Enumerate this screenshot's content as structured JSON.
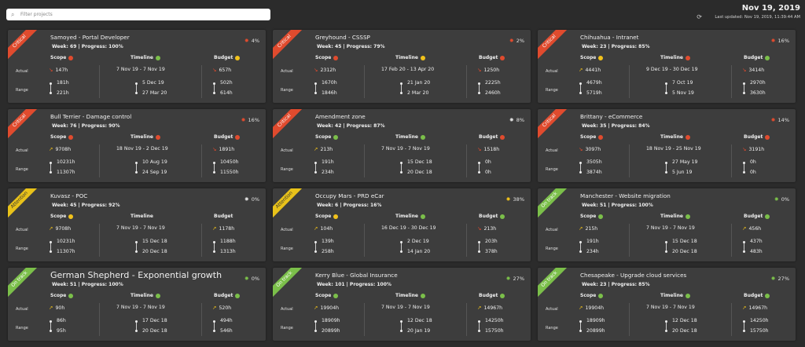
{
  "header": {
    "search_placeholder": "Filter projects",
    "date": "Nov 19, 2019",
    "last_updated": "Last updated: Nov 19, 2019, 11:39:44 AM"
  },
  "labels": {
    "scope": "Scope",
    "timeline": "Timeline",
    "budget": "Budget",
    "actual": "Actual",
    "range": "Range"
  },
  "colors": {
    "red": "#e04b2e",
    "yellow": "#f2c21b",
    "green": "#7bbf4a",
    "critical": "#e04b2e",
    "attention": "#e8c21a",
    "ontrack": "#7bbf4a"
  },
  "cards": [
    {
      "status": "Critical",
      "title": "Samoyed - Portal Developer",
      "week": "Week: 69 | Progress: 100%",
      "bugs": "4%",
      "bug_color": "red",
      "scope": {
        "dot": "red",
        "actual": "147h",
        "trend": "down",
        "r1": "181h",
        "r2": "221h"
      },
      "timeline": {
        "dot": "green",
        "actual": "7 Nov 19 - 7 Nov 19",
        "r1": "5 Dec 19",
        "r2": "27 Mar 20"
      },
      "budget": {
        "dot": "yellow",
        "actual": "657h",
        "trend": "down",
        "r1": "502h",
        "r2": "614h"
      }
    },
    {
      "status": "Critical",
      "title": "Greyhound - CSSSP",
      "week": "Week: 45 | Progress: 79%",
      "bugs": "2%",
      "bug_color": "red",
      "scope": {
        "dot": "red",
        "actual": "2312h",
        "trend": "down",
        "r1": "1670h",
        "r2": "1846h"
      },
      "timeline": {
        "dot": "yellow",
        "actual": "17 Feb 20 - 13 Apr 20",
        "r1": "21 Jan 20",
        "r2": "2 Mar 20"
      },
      "budget": {
        "dot": "red",
        "actual": "1250h",
        "trend": "down",
        "r1": "2225h",
        "r2": "2460h"
      }
    },
    {
      "status": "Critical",
      "title": "Chihuahua - Intranet",
      "week": "Week: 23 | Progress: 85%",
      "bugs": "16%",
      "bug_color": "red",
      "scope": {
        "dot": "yellow",
        "actual": "4441h",
        "trend": "up",
        "r1": "4679h",
        "r2": "5719h"
      },
      "timeline": {
        "dot": "red",
        "actual": "9 Dec 19 - 30 Dec 19",
        "r1": "7 Oct 19",
        "r2": "5 Nov 19"
      },
      "budget": {
        "dot": "green",
        "actual": "3414h",
        "trend": "down",
        "r1": "2970h",
        "r2": "3630h"
      }
    },
    {
      "status": "Critical",
      "title": "Bull Terrier - Damage control",
      "week": "Week: 76 | Progress: 90%",
      "bugs": "16%",
      "bug_color": "red",
      "scope": {
        "dot": "red",
        "actual": "9708h",
        "trend": "up",
        "r1": "10231h",
        "r2": "11307h"
      },
      "timeline": {
        "dot": "red",
        "actual": "18 Nov 19 - 2 Dec 19",
        "r1": "10 Aug 19",
        "r2": "24 Sep 19"
      },
      "budget": {
        "dot": "red",
        "actual": "1891h",
        "trend": "down",
        "r1": "10450h",
        "r2": "11550h"
      }
    },
    {
      "status": "Critical",
      "title": "Amendment zone",
      "week": "Week: 42 | Progress: 87%",
      "bugs": "8%",
      "bug_color": "white",
      "scope": {
        "dot": "green",
        "actual": "213h",
        "trend": "up",
        "r1": "191h",
        "r2": "234h"
      },
      "timeline": {
        "dot": "green",
        "actual": "7 Nov 19 - 7 Nov 19",
        "r1": "15 Dec 18",
        "r2": "20 Dec 18"
      },
      "budget": {
        "dot": "red",
        "actual": "1518h",
        "trend": "down",
        "r1": "0h",
        "r2": "0h"
      }
    },
    {
      "status": "Critical",
      "title": "Brittany - eCommerce",
      "week": "Week: 35 | Progress: 84%",
      "bugs": "14%",
      "bug_color": "red",
      "scope": {
        "dot": "red",
        "actual": "3097h",
        "trend": "down",
        "r1": "3505h",
        "r2": "3874h"
      },
      "timeline": {
        "dot": "red",
        "actual": "18 Nov 19 - 25 Nov 19",
        "r1": "27 May 19",
        "r2": "5 Jun 19"
      },
      "budget": {
        "dot": "red",
        "actual": "3191h",
        "trend": "down",
        "r1": "0h",
        "r2": "0h"
      }
    },
    {
      "status": "Attention",
      "title": "Kuvasz - POC",
      "week": "Week: 45 | Progress: 92%",
      "bugs": "0%",
      "bug_color": "white",
      "scope": {
        "dot": "yellow",
        "actual": "9708h",
        "trend": "up",
        "r1": "10231h",
        "r2": "11307h"
      },
      "timeline": {
        "dot": "",
        "actual": "7 Nov 19 - 7 Nov 19",
        "r1": "15 Dec 18",
        "r2": "20 Dec 18"
      },
      "budget": {
        "dot": "",
        "actual": "1178h",
        "trend": "up",
        "r1": "1188h",
        "r2": "1313h"
      }
    },
    {
      "status": "Attention",
      "title": "Occupy Mars - PRD eCar",
      "week": "Week: 6 | Progress: 16%",
      "bugs": "38%",
      "bug_color": "yellow",
      "scope": {
        "dot": "yellow",
        "actual": "104h",
        "trend": "up",
        "r1": "139h",
        "r2": "258h"
      },
      "timeline": {
        "dot": "green",
        "actual": "16 Dec 19 - 30 Dec 19",
        "r1": "2 Dec 19",
        "r2": "14 Jan 20"
      },
      "budget": {
        "dot": "green",
        "actual": "213h",
        "trend": "down",
        "r1": "203h",
        "r2": "378h"
      }
    },
    {
      "status": "On track",
      "title": "Manchester - Website migration",
      "week": "Week: 51 | Progress: 100%",
      "bugs": "0%",
      "bug_color": "green",
      "scope": {
        "dot": "green",
        "actual": "215h",
        "trend": "up",
        "r1": "191h",
        "r2": "234h"
      },
      "timeline": {
        "dot": "green",
        "actual": "7 Nov 19 - 7 Nov 19",
        "r1": "15 Dec 18",
        "r2": "20 Dec 18"
      },
      "budget": {
        "dot": "green",
        "actual": "456h",
        "trend": "up",
        "r1": "437h",
        "r2": "483h"
      }
    },
    {
      "status": "On track",
      "title": "German Shepherd - Exponential growth",
      "week": "Week: 51 | Progress: 100%",
      "bugs": "0%",
      "bug_color": "green",
      "big": true,
      "scope": {
        "dot": "green",
        "actual": "90h",
        "trend": "up",
        "r1": "86h",
        "r2": "95h"
      },
      "timeline": {
        "dot": "green",
        "actual": "7 Nov 19 - 7 Nov 19",
        "r1": "17 Dec 18",
        "r2": "20 Dec 18"
      },
      "budget": {
        "dot": "green",
        "actual": "520h",
        "trend": "up",
        "r1": "494h",
        "r2": "546h"
      }
    },
    {
      "status": "On track",
      "title": "Kerry Blue - Global Insurance",
      "week": "Week: 101 | Progress: 100%",
      "bugs": "27%",
      "bug_color": "green",
      "scope": {
        "dot": "green",
        "actual": "19904h",
        "trend": "up",
        "r1": "18909h",
        "r2": "20899h"
      },
      "timeline": {
        "dot": "green",
        "actual": "7 Nov 19 - 7 Nov 19",
        "r1": "12 Dec 18",
        "r2": "20 Jan 19"
      },
      "budget": {
        "dot": "green",
        "actual": "14967h",
        "trend": "up",
        "r1": "14250h",
        "r2": "15750h"
      }
    },
    {
      "status": "On track",
      "title": "Chesapeake - Upgrade cloud services",
      "week": "Week: 23 | Progress: 85%",
      "bugs": "27%",
      "bug_color": "green",
      "scope": {
        "dot": "green",
        "actual": "19904h",
        "trend": "up",
        "r1": "18909h",
        "r2": "20899h"
      },
      "timeline": {
        "dot": "green",
        "actual": "7 Nov 19 - 7 Nov 19",
        "r1": "12 Dec 18",
        "r2": "20 Dec 18"
      },
      "budget": {
        "dot": "green",
        "actual": "14967h",
        "trend": "up",
        "r1": "14250h",
        "r2": "15750h"
      }
    }
  ]
}
